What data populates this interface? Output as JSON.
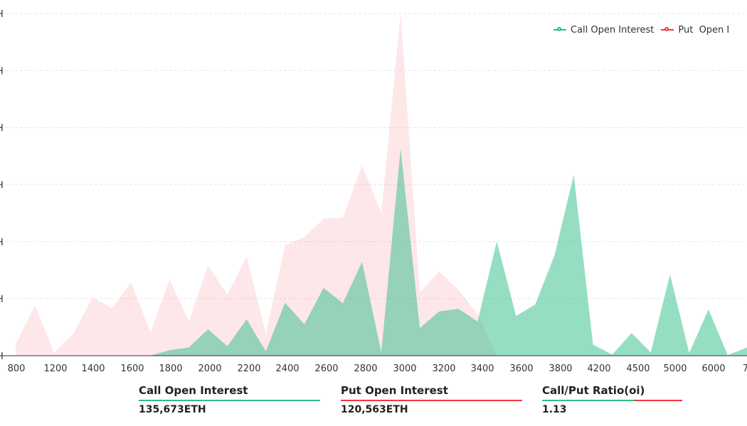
{
  "chart_data": {
    "type": "area",
    "x": [
      800,
      1000,
      1200,
      1300,
      1400,
      1500,
      1600,
      1700,
      1800,
      1900,
      2000,
      2100,
      2200,
      2300,
      2400,
      2500,
      2600,
      2700,
      2800,
      2900,
      3000,
      3100,
      3200,
      3300,
      3400,
      3500,
      3600,
      3700,
      3800,
      4000,
      4200,
      4300,
      4500,
      4750,
      5000,
      5500,
      6000,
      6500,
      7000
    ],
    "x_tick_labels": [
      "800",
      "1200",
      "1400",
      "1600",
      "1800",
      "2000",
      "2200",
      "2400",
      "2600",
      "2800",
      "3000",
      "3200",
      "3400",
      "3600",
      "3800",
      "4200",
      "4500",
      "5000",
      "6000",
      "7"
    ],
    "series": [
      {
        "name": "Call Open Interest",
        "color": "#2ebd85",
        "values": [
          0,
          0,
          0,
          0,
          0,
          0,
          1,
          2,
          100,
          150,
          480,
          170,
          660,
          80,
          960,
          570,
          1230,
          950,
          1700,
          60,
          3750,
          500,
          800,
          850,
          620,
          2070,
          720,
          930,
          1820,
          3280,
          200,
          20,
          410,
          60,
          1470,
          50,
          840,
          10,
          150
        ]
      },
      {
        "name": "Put  Open I",
        "color": "#f23645",
        "values": [
          200,
          920,
          50,
          400,
          1060,
          860,
          1320,
          420,
          1380,
          620,
          1630,
          1110,
          1800,
          400,
          2000,
          2150,
          2480,
          2500,
          3450,
          2580,
          6200,
          1150,
          1520,
          1200,
          750,
          0,
          0,
          0,
          0,
          0,
          0,
          0,
          0,
          0,
          0,
          0,
          0,
          0,
          0
        ]
      }
    ],
    "ylim": [
      0,
      6200
    ],
    "y_gridlines": 6,
    "grid": true,
    "legend_position": "top-right"
  },
  "y_tick_labels": [
    "H",
    "H",
    "H",
    "H",
    "H",
    "H",
    "H"
  ],
  "stats": [
    {
      "label": "Call Open Interest",
      "value": "135,673ETH"
    },
    {
      "label": "Put Open Interest",
      "value": "120,563ETH"
    },
    {
      "label": "Call/Put Ratio(oi)",
      "value": "1.13"
    }
  ]
}
